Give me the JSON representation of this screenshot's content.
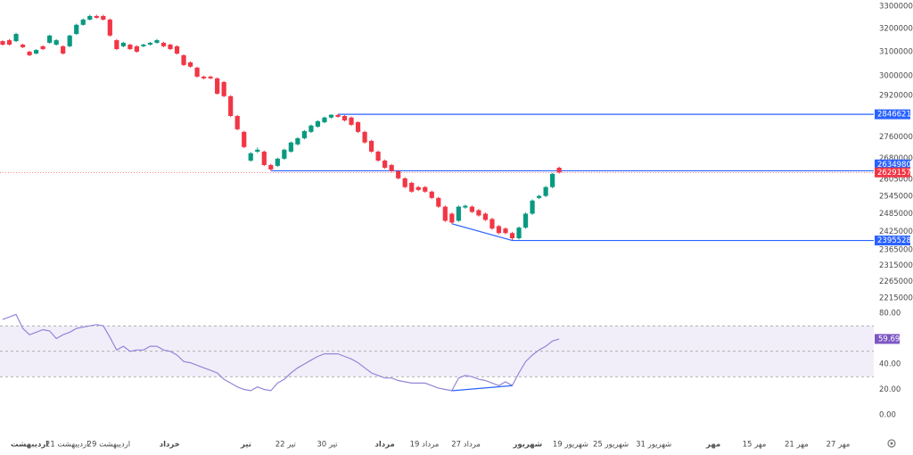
{
  "chart_data": {
    "type": "candlestick",
    "log_scale": true,
    "up_color": "#089981",
    "down_color": "#f23645",
    "ylim": [
      2185000,
      3328000
    ],
    "yticks": [
      3300000,
      3200000,
      3100000,
      3000000,
      2920000,
      2760000,
      2680000,
      2605000,
      2545000,
      2485000,
      2425000,
      2365000,
      2315000,
      2265000,
      2215000
    ],
    "candles": [
      [
        3146000,
        3150000,
        3127000,
        3131000
      ],
      [
        3150000,
        3155000,
        3127000,
        3131000
      ],
      [
        3146000,
        3182000,
        3142000,
        3177000
      ],
      [
        3131000,
        3135000,
        3116000,
        3120000
      ],
      [
        3101000,
        3105000,
        3082000,
        3086000
      ],
      [
        3093000,
        3112000,
        3090000,
        3108000
      ],
      [
        3124000,
        3128000,
        3108000,
        3112000
      ],
      [
        3139000,
        3174000,
        3135000,
        3170000
      ],
      [
        3131000,
        3155000,
        3127000,
        3150000
      ],
      [
        3124000,
        3128000,
        3089000,
        3093000
      ],
      [
        3124000,
        3174000,
        3120000,
        3170000
      ],
      [
        3177000,
        3222000,
        3173000,
        3217000
      ],
      [
        3217000,
        3245000,
        3213000,
        3240000
      ],
      [
        3240000,
        3262000,
        3236000,
        3256000
      ],
      [
        3256000,
        3262000,
        3244000,
        3248000
      ],
      [
        3256000,
        3262000,
        3236000,
        3240000
      ],
      [
        3240000,
        3245000,
        3165000,
        3170000
      ],
      [
        3150000,
        3155000,
        3108000,
        3112000
      ],
      [
        3124000,
        3143000,
        3120000,
        3139000
      ],
      [
        3131000,
        3135000,
        3108000,
        3112000
      ],
      [
        3124000,
        3128000,
        3097000,
        3101000
      ],
      [
        3124000,
        3135000,
        3120000,
        3131000
      ],
      [
        3131000,
        3143000,
        3127000,
        3139000
      ],
      [
        3139000,
        3155000,
        3135000,
        3150000
      ],
      [
        3139000,
        3143000,
        3120000,
        3124000
      ],
      [
        3131000,
        3135000,
        3108000,
        3112000
      ],
      [
        3124000,
        3128000,
        3089000,
        3093000
      ],
      [
        3086000,
        3090000,
        3041000,
        3045000
      ],
      [
        3056000,
        3060000,
        3034000,
        3038000
      ],
      [
        3034000,
        3038000,
        2993000,
        2997000
      ],
      [
        2997000,
        3001000,
        2986000,
        2990000
      ],
      [
        2997000,
        3001000,
        2986000,
        2990000
      ],
      [
        2990000,
        2994000,
        2924000,
        2928000
      ],
      [
        2975000,
        2979000,
        2914000,
        2918000
      ],
      [
        2918000,
        2922000,
        2836000,
        2840000
      ],
      [
        2840000,
        2844000,
        2785000,
        2789000
      ],
      [
        2779000,
        2783000,
        2718000,
        2722000
      ],
      [
        2672000,
        2703000,
        2668000,
        2699000
      ],
      [
        2705000,
        2720000,
        2700000,
        2712000
      ],
      [
        2705000,
        2709000,
        2652000,
        2656000
      ],
      [
        2656000,
        2660000,
        2634980,
        2640000
      ],
      [
        2653000,
        2683000,
        2649000,
        2679000
      ],
      [
        2679000,
        2716000,
        2675000,
        2712000
      ],
      [
        2705000,
        2743000,
        2701000,
        2739000
      ],
      [
        2732000,
        2759000,
        2728000,
        2755000
      ],
      [
        2755000,
        2786000,
        2751000,
        2782000
      ],
      [
        2779000,
        2807000,
        2775000,
        2803000
      ],
      [
        2799000,
        2824000,
        2795000,
        2820000
      ],
      [
        2816000,
        2838000,
        2812000,
        2834000
      ],
      [
        2834000,
        2846000,
        2830000,
        2845000
      ],
      [
        2844000,
        2846621,
        2833000,
        2837000
      ],
      [
        2840000,
        2844000,
        2819000,
        2823000
      ],
      [
        2834000,
        2838000,
        2802000,
        2806000
      ],
      [
        2816000,
        2820000,
        2775000,
        2779000
      ],
      [
        2779000,
        2783000,
        2735000,
        2739000
      ],
      [
        2745000,
        2749000,
        2701000,
        2705000
      ],
      [
        2705000,
        2709000,
        2668000,
        2672000
      ],
      [
        2672000,
        2676000,
        2642000,
        2646000
      ],
      [
        2656000,
        2660000,
        2630000,
        2634000
      ],
      [
        2634000,
        2638000,
        2604000,
        2608000
      ],
      [
        2608000,
        2612000,
        2573000,
        2577000
      ],
      [
        2592000,
        2596000,
        2557000,
        2561000
      ],
      [
        2577000,
        2581000,
        2563000,
        2567000
      ],
      [
        2577000,
        2581000,
        2557000,
        2561000
      ],
      [
        2561000,
        2565000,
        2535000,
        2539000
      ],
      [
        2539000,
        2543000,
        2505000,
        2509000
      ],
      [
        2509000,
        2513000,
        2457000,
        2461000
      ],
      [
        2485000,
        2489000,
        2451000,
        2455000
      ],
      [
        2461000,
        2513000,
        2457000,
        2509000
      ],
      [
        2506000,
        2516000,
        2502000,
        2512000
      ],
      [
        2509000,
        2513000,
        2487000,
        2491000
      ],
      [
        2497000,
        2501000,
        2475000,
        2479000
      ],
      [
        2485000,
        2489000,
        2460000,
        2464000
      ],
      [
        2467000,
        2471000,
        2431000,
        2435000
      ],
      [
        2443000,
        2447000,
        2416000,
        2420000
      ],
      [
        2435000,
        2439000,
        2416000,
        2420000
      ],
      [
        2420000,
        2424000,
        2395528,
        2403000
      ],
      [
        2403000,
        2442000,
        2399000,
        2438000
      ],
      [
        2438000,
        2489000,
        2434000,
        2485000
      ],
      [
        2485000,
        2534000,
        2481000,
        2530000
      ],
      [
        2539000,
        2550000,
        2535000,
        2546000
      ],
      [
        2546000,
        2581000,
        2542000,
        2577000
      ],
      [
        2577000,
        2628000,
        2573000,
        2624000
      ],
      [
        2646000,
        2650000,
        2625000,
        2629157
      ]
    ],
    "levels": [
      {
        "value": 2846621,
        "color": "#2962ff"
      },
      {
        "value": 2634980,
        "color": "#2962ff"
      },
      {
        "value": 2395528,
        "color": "#2962ff"
      }
    ],
    "xticks": [
      {
        "value": 4.0,
        "label": "اردیبهشت"
      },
      {
        "value": 9.6,
        "label": "21 اردیبهشت"
      },
      {
        "value": 15.8,
        "label": "29 اردیبهشت"
      },
      {
        "value": 24.9,
        "label": "خرداد"
      },
      {
        "value": 36.3,
        "label": "تیر"
      },
      {
        "value": 42.2,
        "label": "22 تیر"
      },
      {
        "value": 48.4,
        "label": "30 تیر"
      },
      {
        "value": 57.0,
        "label": "مرداد"
      },
      {
        "value": 62.9,
        "label": "19 مرداد"
      },
      {
        "value": 69.1,
        "label": "27 مرداد"
      },
      {
        "value": 78.3,
        "label": "شهریور"
      },
      {
        "value": 84.7,
        "label": "19 شهریور"
      },
      {
        "value": 90.7,
        "label": "25 شهریور"
      },
      {
        "value": 97.1,
        "label": "31 شهریور"
      },
      {
        "value": 106.0,
        "label": "مهر"
      },
      {
        "value": 112.1,
        "label": "15 مهر"
      },
      {
        "value": 118.4,
        "label": "21 مهر"
      },
      {
        "value": 124.6,
        "label": "27 مهر"
      }
    ],
    "rsi": {
      "color": "#9585d8",
      "ylim": [
        -10.5,
        84.2
      ],
      "yticks": [
        {
          "value": 80,
          "label": "80.00"
        },
        {
          "value": 40,
          "label": "40.00"
        },
        {
          "value": 20,
          "label": "20.00"
        },
        {
          "value": 0,
          "label": "0.00"
        }
      ],
      "band": [
        30,
        70
      ],
      "levels": [
        70,
        50,
        30
      ],
      "values": [
        75,
        77,
        79,
        68,
        63,
        65,
        67,
        66,
        60,
        63,
        65,
        68,
        69,
        70,
        71,
        70,
        61,
        51,
        54,
        50,
        51,
        51,
        54,
        54,
        51,
        50,
        47,
        42,
        41,
        39,
        37,
        35,
        33,
        28,
        25,
        22,
        20,
        19,
        22,
        20,
        19,
        25,
        28,
        33,
        37,
        40,
        43,
        46,
        48,
        48,
        48,
        46,
        44,
        41,
        37,
        33,
        31,
        29,
        29,
        27,
        26,
        25,
        25,
        25,
        23,
        21,
        20,
        19,
        29,
        31,
        30,
        28,
        27,
        25,
        23,
        26,
        23,
        33,
        42,
        47,
        51,
        54,
        58,
        59.69
      ]
    }
  }
}
